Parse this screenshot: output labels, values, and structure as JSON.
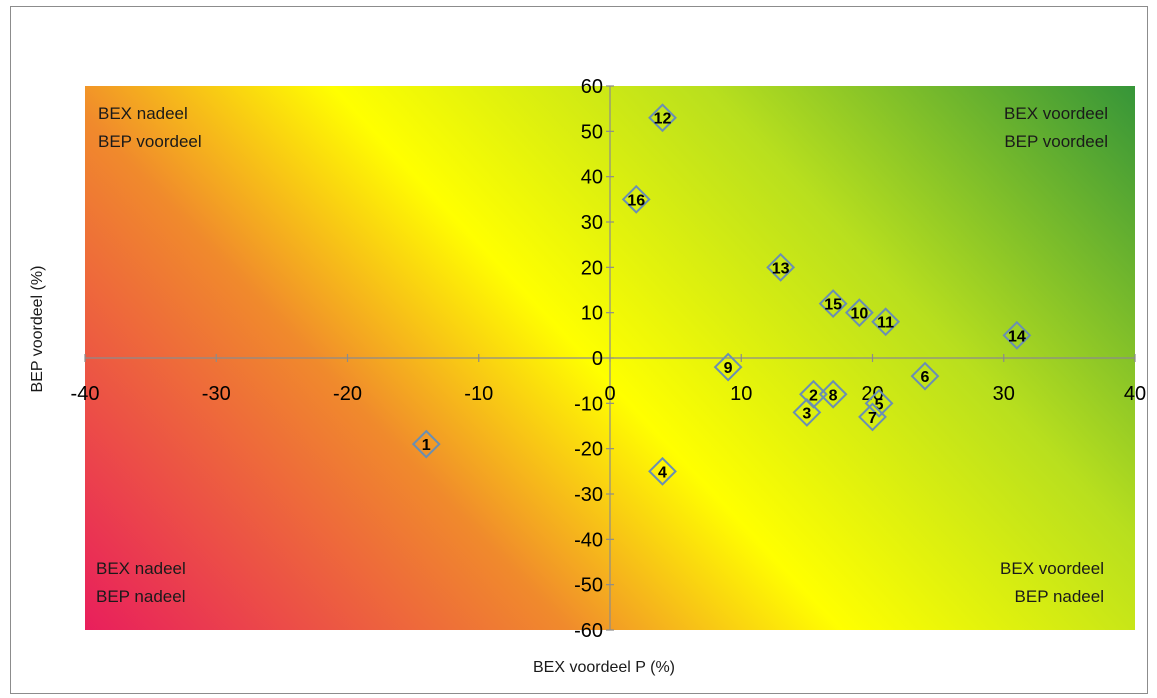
{
  "chart_data": {
    "type": "scatter",
    "title": "",
    "xlabel": "BEX voordeel P (%)",
    "ylabel": "BEP voordeel (%)",
    "xlim": [
      -40,
      40
    ],
    "ylim": [
      -60,
      60
    ],
    "x_ticks": [
      -40,
      -30,
      -20,
      -10,
      0,
      10,
      20,
      30,
      40
    ],
    "y_ticks": [
      60,
      50,
      40,
      30,
      20,
      10,
      0,
      -10,
      -20,
      -30,
      -40,
      -50,
      -60
    ],
    "grid": false,
    "marker": "diamond",
    "marker_color": "#6a8fb3",
    "background": "diagonal gradient from pink-red (bottom-left) through orange and yellow to green (top-right)",
    "colors": {
      "bottom_left": "#e8185f",
      "mid_orange": "#f08a2c",
      "center_yellow": "#ffff00",
      "mid_green": "#b8df1e",
      "top_right": "#118040"
    },
    "points": [
      {
        "label": "1",
        "x": -14,
        "y": -19
      },
      {
        "label": "2",
        "x": 15.5,
        "y": -8
      },
      {
        "label": "3",
        "x": 15,
        "y": -12
      },
      {
        "label": "4",
        "x": 4,
        "y": -25
      },
      {
        "label": "5",
        "x": 20.5,
        "y": -10
      },
      {
        "label": "6",
        "x": 24,
        "y": -4
      },
      {
        "label": "7",
        "x": 20,
        "y": -13
      },
      {
        "label": "8",
        "x": 17,
        "y": -8
      },
      {
        "label": "9",
        "x": 9,
        "y": -2
      },
      {
        "label": "10",
        "x": 19,
        "y": 10
      },
      {
        "label": "11",
        "x": 21,
        "y": 8
      },
      {
        "label": "12",
        "x": 4,
        "y": 53
      },
      {
        "label": "13",
        "x": 13,
        "y": 20
      },
      {
        "label": "14",
        "x": 31,
        "y": 5
      },
      {
        "label": "15",
        "x": 17,
        "y": 12
      },
      {
        "label": "16",
        "x": 2,
        "y": 35
      }
    ],
    "annotations": {
      "top_left": [
        "BEX nadeel",
        "BEP voordeel"
      ],
      "top_right": [
        "BEX voordeel",
        "BEP voordeel"
      ],
      "bottom_left": [
        "BEX nadeel",
        "BEP nadeel"
      ],
      "bottom_right": [
        "BEX voordeel",
        "BEP nadeel"
      ]
    }
  }
}
